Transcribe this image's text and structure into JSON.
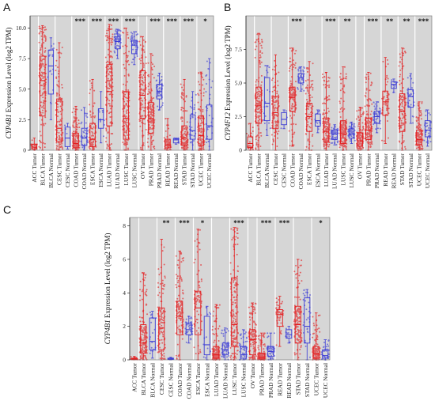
{
  "colors": {
    "tumor": "#e41a1c",
    "normal": "#3a3ad6",
    "band": "#d6d6d6",
    "background": "#ffffff"
  },
  "chart_data": [
    {
      "type": "box-scatter",
      "letter": "A",
      "ylabel_gene": "CYP4B1",
      "ylabel_rest": " Expression Level (log2 TPM)",
      "ylim": [
        0,
        11
      ],
      "yticks": [
        0,
        2.5,
        5.0,
        7.5,
        10.0
      ],
      "ytick_labels": [
        "0",
        "2.5",
        "5.0",
        "7.5",
        "10.0"
      ],
      "categories": [
        "ACC Tumor",
        "BLCA Tumor",
        "BLCA Normal",
        "CESC Tumor",
        "CESC Normal",
        "COAD Tumor",
        "COAD Normal",
        "ESCA Tumor",
        "ESCA Normal",
        "LUAD Tumor",
        "LUAD Normal",
        "LUSC Tumor",
        "LUSC Normal",
        "OV Tumor",
        "PRAD Tumor",
        "PRAD Normal",
        "READ Tumor",
        "READ Normal",
        "STAD Tumor",
        "STAD Normal",
        "UCEC Tumor",
        "UCEC Normal"
      ],
      "types": [
        "tumor",
        "tumor",
        "normal",
        "tumor",
        "normal",
        "tumor",
        "normal",
        "tumor",
        "normal",
        "tumor",
        "normal",
        "tumor",
        "normal",
        "tumor",
        "tumor",
        "normal",
        "tumor",
        "normal",
        "tumor",
        "normal",
        "tumor",
        "normal"
      ],
      "groups": [
        [
          0
        ],
        [
          1,
          2
        ],
        [
          3,
          4
        ],
        [
          5,
          6
        ],
        [
          7,
          8
        ],
        [
          9,
          10
        ],
        [
          11,
          12
        ],
        [
          13
        ],
        [
          14,
          15
        ],
        [
          16,
          17
        ],
        [
          18,
          19
        ],
        [
          20,
          21
        ]
      ],
      "significance": [
        "",
        "",
        "",
        "***",
        "***",
        "***",
        "***",
        "",
        "***",
        "***",
        "***",
        "*"
      ],
      "boxes": [
        {
          "q1": 0.1,
          "median": 0.25,
          "q3": 0.5,
          "lo": 0,
          "hi": 1.0,
          "n": 25
        },
        {
          "q1": 2.8,
          "median": 5.7,
          "q3": 7.7,
          "lo": 0,
          "hi": 10.2,
          "n": 160
        },
        {
          "q1": 4.6,
          "median": 6.9,
          "q3": 8.2,
          "lo": 2.5,
          "hi": 9.2,
          "n": 19
        },
        {
          "q1": 0.7,
          "median": 1.8,
          "q3": 4.2,
          "lo": 0,
          "hi": 8.8,
          "n": 120
        },
        {
          "q1": 0.3,
          "median": 1.0,
          "q3": 1.9,
          "lo": 0.1,
          "hi": 2.2,
          "n": 3
        },
        {
          "q1": 0.2,
          "median": 0.55,
          "q3": 1.4,
          "lo": 0,
          "hi": 3.6,
          "n": 130
        },
        {
          "q1": 0.4,
          "median": 1.0,
          "q3": 1.8,
          "lo": 0,
          "hi": 3.5,
          "n": 41
        },
        {
          "q1": 0.3,
          "median": 0.9,
          "q3": 2.2,
          "lo": 0,
          "hi": 5.8,
          "n": 90
        },
        {
          "q1": 1.8,
          "median": 2.5,
          "q3": 3.4,
          "lo": 0.6,
          "hi": 4.8,
          "n": 11
        },
        {
          "q1": 2.0,
          "median": 4.8,
          "q3": 7.0,
          "lo": 0,
          "hi": 10.3,
          "n": 165
        },
        {
          "q1": 8.3,
          "median": 8.9,
          "q3": 9.3,
          "lo": 7.5,
          "hi": 9.9,
          "n": 59
        },
        {
          "q1": 0.9,
          "median": 2.6,
          "q3": 4.8,
          "lo": 0,
          "hi": 10.0,
          "n": 160
        },
        {
          "q1": 7.9,
          "median": 8.6,
          "q3": 9.0,
          "lo": 7.0,
          "hi": 9.7,
          "n": 52
        },
        {
          "q1": 2.6,
          "median": 4.5,
          "q3": 6.5,
          "lo": 0,
          "hi": 9.3,
          "n": 130
        },
        {
          "q1": 1.4,
          "median": 2.6,
          "q3": 3.9,
          "lo": 0,
          "hi": 7.9,
          "n": 150
        },
        {
          "q1": 4.2,
          "median": 4.8,
          "q3": 5.4,
          "lo": 3.3,
          "hi": 6.3,
          "n": 52
        },
        {
          "q1": 0.2,
          "median": 0.45,
          "q3": 0.9,
          "lo": 0,
          "hi": 2.6,
          "n": 50
        },
        {
          "q1": 0.6,
          "median": 0.85,
          "q3": 0.95,
          "lo": 0.5,
          "hi": 1.0,
          "n": 10
        },
        {
          "q1": 0.4,
          "median": 1.0,
          "q3": 2.0,
          "lo": 0,
          "hi": 5.8,
          "n": 130
        },
        {
          "q1": 0.9,
          "median": 1.6,
          "q3": 2.9,
          "lo": 0,
          "hi": 4.8,
          "n": 36
        },
        {
          "q1": 0.4,
          "median": 1.2,
          "q3": 2.8,
          "lo": 0,
          "hi": 6.4,
          "n": 130
        },
        {
          "q1": 0.9,
          "median": 2.0,
          "q3": 3.7,
          "lo": 0,
          "hi": 7.5,
          "n": 35
        }
      ]
    },
    {
      "type": "box-scatter",
      "letter": "B",
      "ylabel_gene": "CYP4F12",
      "ylabel_rest": " Expression Level (log2 TPM)",
      "ylim": [
        0,
        10
      ],
      "yticks": [
        0,
        2.5,
        5.0,
        7.5
      ],
      "ytick_labels": [
        "0",
        "2.5",
        "5.0",
        "7.5"
      ],
      "categories": [
        "ACC Tumor",
        "BLCA Tumor",
        "BLCA Normal",
        "CESC Tumor",
        "CESC Normal",
        "COAD Tumor",
        "COAD Normal",
        "ESCA Tumor",
        "ESCA Normal",
        "LUAD Tumor",
        "LUAD Normal",
        "LUSC Tumor",
        "LUSC Normal",
        "OV Tumor",
        "PRAD Tumor",
        "PRAD Normal",
        "READ Tumor",
        "READ Normal",
        "STAD Tumor",
        "STAD Normal",
        "UCEC Tumor",
        "UCEC Normal"
      ],
      "types": [
        "tumor",
        "tumor",
        "normal",
        "tumor",
        "normal",
        "tumor",
        "normal",
        "tumor",
        "normal",
        "tumor",
        "normal",
        "tumor",
        "normal",
        "tumor",
        "tumor",
        "normal",
        "tumor",
        "normal",
        "tumor",
        "normal",
        "tumor",
        "normal"
      ],
      "groups": [
        [
          0
        ],
        [
          1,
          2
        ],
        [
          3,
          4
        ],
        [
          5,
          6
        ],
        [
          7,
          8
        ],
        [
          9,
          10
        ],
        [
          11,
          12
        ],
        [
          13
        ],
        [
          14,
          15
        ],
        [
          16,
          17
        ],
        [
          18,
          19
        ],
        [
          20,
          21
        ]
      ],
      "significance": [
        "",
        "",
        "",
        "***",
        "",
        "***",
        "**",
        "",
        "***",
        "**",
        "**",
        "***"
      ],
      "boxes": [
        {
          "q1": 0.2,
          "median": 0.5,
          "q3": 1.0,
          "lo": 0,
          "hi": 2.0,
          "n": 25
        },
        {
          "q1": 2.0,
          "median": 3.3,
          "q3": 4.7,
          "lo": 0,
          "hi": 8.7,
          "n": 160
        },
        {
          "q1": 2.2,
          "median": 3.5,
          "q3": 5.4,
          "lo": 1.1,
          "hi": 6.3,
          "n": 19
        },
        {
          "q1": 1.6,
          "median": 2.8,
          "q3": 4.0,
          "lo": 0,
          "hi": 7.1,
          "n": 120
        },
        {
          "q1": 1.9,
          "median": 2.3,
          "q3": 2.8,
          "lo": 1.6,
          "hi": 3.0,
          "n": 3
        },
        {
          "q1": 2.9,
          "median": 3.9,
          "q3": 4.7,
          "lo": 0.3,
          "hi": 7.6,
          "n": 130
        },
        {
          "q1": 5.0,
          "median": 5.4,
          "q3": 5.7,
          "lo": 4.4,
          "hi": 6.2,
          "n": 41
        },
        {
          "q1": 1.4,
          "median": 2.5,
          "q3": 3.5,
          "lo": 0,
          "hi": 6.6,
          "n": 90
        },
        {
          "q1": 1.8,
          "median": 2.2,
          "q3": 2.7,
          "lo": 1.3,
          "hi": 3.0,
          "n": 11
        },
        {
          "q1": 0.6,
          "median": 1.4,
          "q3": 2.4,
          "lo": 0,
          "hi": 5.8,
          "n": 165
        },
        {
          "q1": 0.8,
          "median": 1.2,
          "q3": 1.5,
          "lo": 0.4,
          "hi": 1.9,
          "n": 59
        },
        {
          "q1": 0.5,
          "median": 1.2,
          "q3": 2.2,
          "lo": 0,
          "hi": 6.2,
          "n": 160
        },
        {
          "q1": 0.9,
          "median": 1.2,
          "q3": 1.6,
          "lo": 0.5,
          "hi": 2.1,
          "n": 52
        },
        {
          "q1": 0.3,
          "median": 0.7,
          "q3": 1.3,
          "lo": 0,
          "hi": 3.2,
          "n": 130
        },
        {
          "q1": 0.8,
          "median": 1.5,
          "q3": 2.4,
          "lo": 0,
          "hi": 5.8,
          "n": 150
        },
        {
          "q1": 2.0,
          "median": 2.5,
          "q3": 2.9,
          "lo": 1.3,
          "hi": 3.6,
          "n": 52
        },
        {
          "q1": 2.6,
          "median": 3.6,
          "q3": 4.4,
          "lo": 0.5,
          "hi": 6.9,
          "n": 50
        },
        {
          "q1": 4.6,
          "median": 4.9,
          "q3": 5.1,
          "lo": 4.3,
          "hi": 5.3,
          "n": 10
        },
        {
          "q1": 1.4,
          "median": 2.9,
          "q3": 4.2,
          "lo": 0,
          "hi": 7.6,
          "n": 130
        },
        {
          "q1": 3.2,
          "median": 4.0,
          "q3": 4.5,
          "lo": 2.0,
          "hi": 5.7,
          "n": 36
        },
        {
          "q1": 0.4,
          "median": 0.8,
          "q3": 1.5,
          "lo": 0,
          "hi": 3.6,
          "n": 130
        },
        {
          "q1": 1.0,
          "median": 1.5,
          "q3": 2.2,
          "lo": 0.3,
          "hi": 3.0,
          "n": 35
        }
      ]
    },
    {
      "type": "box-scatter",
      "letter": "C",
      "ylabel_gene": "CYP4B1",
      "ylabel_rest": " Expression Level (log2 TPM)",
      "ylim": [
        0,
        8.5
      ],
      "yticks": [
        0,
        2,
        4,
        6,
        8
      ],
      "ytick_labels": [
        "0",
        "2",
        "4",
        "6",
        "8"
      ],
      "categories": [
        "ACC Tumor",
        "BLCA Tumor",
        "BLCA Normal",
        "CESC Tumor",
        "CESC Normal",
        "COAD Tumor",
        "COAD Normal",
        "ESCA Tumor",
        "ESCA Normal",
        "LUAD Tumor",
        "LUAD Normal",
        "LUSC Tumor",
        "LUSC Normal",
        "OV Tumor",
        "PRAD Tumor",
        "PRAD Normal",
        "READ Tumor",
        "READ Normal",
        "STAD Tumor",
        "STAD Normal",
        "UCEC Tumor",
        "UCEC Normal"
      ],
      "types": [
        "tumor",
        "tumor",
        "normal",
        "tumor",
        "normal",
        "tumor",
        "normal",
        "tumor",
        "normal",
        "tumor",
        "normal",
        "tumor",
        "normal",
        "tumor",
        "tumor",
        "normal",
        "tumor",
        "normal",
        "tumor",
        "normal",
        "tumor",
        "normal"
      ],
      "groups": [
        [
          0
        ],
        [
          1,
          2
        ],
        [
          3,
          4
        ],
        [
          5,
          6
        ],
        [
          7,
          8
        ],
        [
          9,
          10
        ],
        [
          11,
          12
        ],
        [
          13
        ],
        [
          14,
          15
        ],
        [
          16,
          17
        ],
        [
          18,
          19
        ],
        [
          20,
          21
        ]
      ],
      "significance": [
        "",
        "",
        "**",
        "***",
        "*",
        "",
        "***",
        "",
        "***",
        "***",
        "",
        "*"
      ],
      "boxes": [
        {
          "q1": 0.02,
          "median": 0.05,
          "q3": 0.1,
          "lo": 0,
          "hi": 0.2,
          "n": 25
        },
        {
          "q1": 0.4,
          "median": 1.0,
          "q3": 2.1,
          "lo": 0,
          "hi": 5.2,
          "n": 160
        },
        {
          "q1": 0.6,
          "median": 1.1,
          "q3": 2.5,
          "lo": 0.1,
          "hi": 2.9,
          "n": 19
        },
        {
          "q1": 0.6,
          "median": 1.9,
          "q3": 3.1,
          "lo": 0,
          "hi": 7.2,
          "n": 120
        },
        {
          "q1": 0.02,
          "median": 0.05,
          "q3": 0.1,
          "lo": 0,
          "hi": 0.15,
          "n": 3
        },
        {
          "q1": 1.5,
          "median": 2.6,
          "q3": 3.5,
          "lo": 0,
          "hi": 6.5,
          "n": 130
        },
        {
          "q1": 1.5,
          "median": 1.8,
          "q3": 2.2,
          "lo": 1.0,
          "hi": 2.6,
          "n": 41
        },
        {
          "q1": 1.5,
          "median": 3.1,
          "q3": 4.1,
          "lo": 0,
          "hi": 7.8,
          "n": 90
        },
        {
          "q1": 0.3,
          "median": 0.9,
          "q3": 2.6,
          "lo": 0,
          "hi": 3.2,
          "n": 11
        },
        {
          "q1": 0.1,
          "median": 0.3,
          "q3": 0.8,
          "lo": 0,
          "hi": 3.3,
          "n": 165
        },
        {
          "q1": 0.3,
          "median": 0.6,
          "q3": 1.0,
          "lo": 0,
          "hi": 1.9,
          "n": 59
        },
        {
          "q1": 0.8,
          "median": 2.1,
          "q3": 4.9,
          "lo": 0,
          "hi": 7.9,
          "n": 160
        },
        {
          "q1": 0.1,
          "median": 0.3,
          "q3": 0.8,
          "lo": 0,
          "hi": 1.8,
          "n": 52
        },
        {
          "q1": 0.3,
          "median": 1.2,
          "q3": 1.8,
          "lo": 0,
          "hi": 3.4,
          "n": 130
        },
        {
          "q1": 0.05,
          "median": 0.15,
          "q3": 0.4,
          "lo": 0,
          "hi": 1.6,
          "n": 150
        },
        {
          "q1": 0.2,
          "median": 0.5,
          "q3": 0.8,
          "lo": 0,
          "hi": 1.6,
          "n": 52
        },
        {
          "q1": 2.0,
          "median": 2.7,
          "q3": 3.0,
          "lo": 0.8,
          "hi": 3.8,
          "n": 50
        },
        {
          "q1": 1.3,
          "median": 1.5,
          "q3": 1.8,
          "lo": 1.0,
          "hi": 2.0,
          "n": 10
        },
        {
          "q1": 1.0,
          "median": 2.1,
          "q3": 3.2,
          "lo": 0,
          "hi": 6.0,
          "n": 130
        },
        {
          "q1": 1.0,
          "median": 2.0,
          "q3": 3.7,
          "lo": 0,
          "hi": 4.2,
          "n": 36
        },
        {
          "q1": 0.1,
          "median": 0.35,
          "q3": 0.8,
          "lo": 0,
          "hi": 2.8,
          "n": 130
        },
        {
          "q1": 0.1,
          "median": 0.25,
          "q3": 0.6,
          "lo": 0,
          "hi": 1.2,
          "n": 35
        }
      ]
    }
  ]
}
